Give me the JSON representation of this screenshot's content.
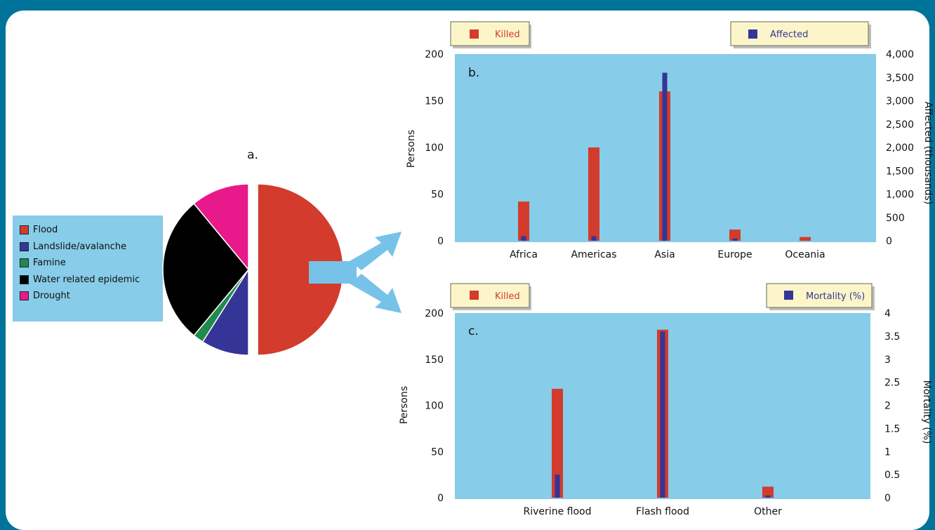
{
  "chart_data": [
    {
      "type": "pie",
      "panel_label": "a.",
      "slices": [
        {
          "label": "Flood",
          "value": 50,
          "color": "#d33b2c"
        },
        {
          "label": "Landslide/avalanche",
          "value": 9,
          "color": "#353597"
        },
        {
          "label": "Famine",
          "value": 2,
          "color": "#1f8a4c"
        },
        {
          "label": "Water related epidemic",
          "value": 28,
          "color": "#000000"
        },
        {
          "label": "Drought",
          "value": 11,
          "color": "#e8198a"
        }
      ]
    },
    {
      "type": "bar",
      "panel_label": "b.",
      "categories": [
        "Africa",
        "Americas",
        "Asia",
        "Europe",
        "Oceania"
      ],
      "series": [
        {
          "name": "Killed",
          "axis": "left",
          "color": "#d33b2c",
          "values": [
            42,
            100,
            160,
            12,
            4
          ]
        },
        {
          "name": "Affected",
          "axis": "right",
          "color": "#353597",
          "values": [
            100,
            100,
            3600,
            50,
            0
          ]
        }
      ],
      "ylabel": "Persons",
      "ylabel_right": "Affected (thousands)",
      "ylim": [
        0,
        200
      ],
      "ylim_right": [
        0,
        4000
      ],
      "yticks": [
        "0",
        "50",
        "100",
        "150",
        "200"
      ],
      "yticks_right": [
        "0",
        "500",
        "1,000",
        "1,500",
        "2,000",
        "2,500",
        "3,000",
        "3,500",
        "4,000"
      ],
      "legend": [
        "Killed",
        "Affected"
      ]
    },
    {
      "type": "bar",
      "panel_label": "c.",
      "categories": [
        "Riverine flood",
        "Flash flood",
        "Other"
      ],
      "series": [
        {
          "name": "Killed",
          "axis": "left",
          "color": "#d33b2c",
          "values": [
            118,
            182,
            12
          ]
        },
        {
          "name": "Mortality (%)",
          "axis": "right",
          "color": "#353597",
          "values": [
            0.5,
            3.6,
            0.05
          ]
        }
      ],
      "ylabel": "Persons",
      "ylabel_right": "Mortality (%)",
      "ylim": [
        0,
        200
      ],
      "ylim_right": [
        0,
        4
      ],
      "yticks": [
        "0",
        "50",
        "100",
        "150",
        "200"
      ],
      "yticks_right": [
        "0",
        "0.5",
        "1",
        "1.5",
        "2",
        "2.5",
        "3",
        "3.5",
        "4"
      ],
      "legend": [
        "Killed",
        "Mortality (%)"
      ]
    }
  ],
  "colors": {
    "frame": "#00739a",
    "plot_bg": "#87cce8",
    "legend_box_bg": "#fbf5c9",
    "arrow": "#77c2e9"
  }
}
